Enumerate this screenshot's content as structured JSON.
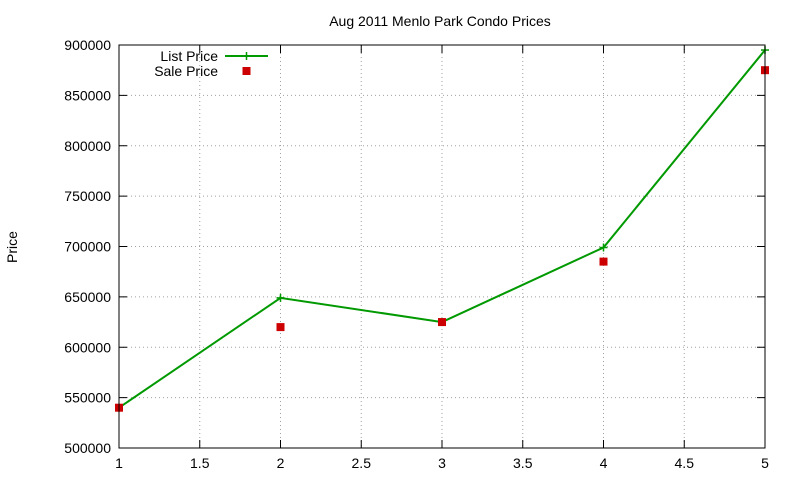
{
  "chart_data": {
    "type": "line",
    "title": "Aug 2011 Menlo Park Condo Prices",
    "xlabel": "",
    "ylabel": "Price",
    "xlim": [
      1,
      5
    ],
    "ylim": [
      500000,
      900000
    ],
    "xticks": [
      1,
      1.5,
      2,
      2.5,
      3,
      3.5,
      4,
      4.5,
      5
    ],
    "yticks": [
      500000,
      550000,
      600000,
      650000,
      700000,
      750000,
      800000,
      850000,
      900000
    ],
    "grid": true,
    "legend_position": "top-left",
    "series": [
      {
        "name": "List Price",
        "style": "line+points",
        "marker": "plus",
        "color": "#009900",
        "x": [
          1,
          2,
          3,
          4,
          5
        ],
        "y": [
          540000,
          649000,
          625000,
          699000,
          895000
        ]
      },
      {
        "name": "Sale Price",
        "style": "points",
        "marker": "square",
        "color": "#cc0000",
        "x": [
          1,
          2,
          3,
          4,
          5
        ],
        "y": [
          540000,
          620000,
          625000,
          685000,
          875000
        ]
      }
    ]
  }
}
